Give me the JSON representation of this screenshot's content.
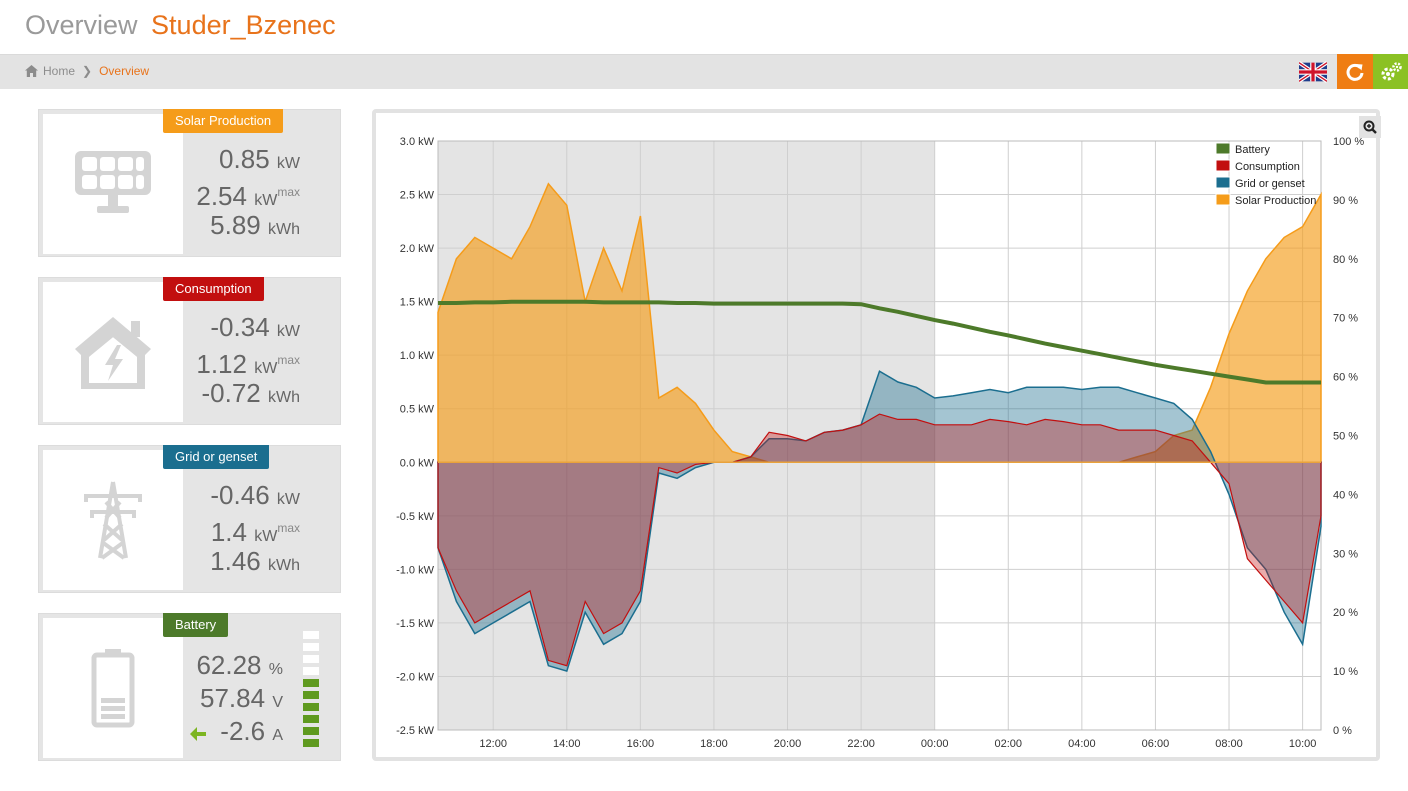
{
  "header": {
    "title": "Overview",
    "site": "Studer_Bzenec"
  },
  "breadcrumb": {
    "home": "Home",
    "current": "Overview"
  },
  "cards": {
    "solar": {
      "label": "Solar Production",
      "color": "#f59c1a",
      "power": "0.85",
      "power_unit": "kW",
      "max": "2.54",
      "max_unit": "kW",
      "max_sup": "max",
      "energy": "5.89",
      "energy_unit": "kWh"
    },
    "consumption": {
      "label": "Consumption",
      "color": "#c20f0f",
      "power": "-0.34",
      "power_unit": "kW",
      "max": "1.12",
      "max_unit": "kW",
      "max_sup": "max",
      "energy": "-0.72",
      "energy_unit": "kWh"
    },
    "grid": {
      "label": "Grid or genset",
      "color": "#1b6e8f",
      "power": "-0.46",
      "power_unit": "kW",
      "max": "1.4",
      "max_unit": "kW",
      "max_sup": "max",
      "energy": "1.46",
      "energy_unit": "kWh"
    },
    "battery": {
      "label": "Battery",
      "color": "#4d7a2a",
      "soc": "62.28",
      "soc_unit": "%",
      "voltage": "57.84",
      "voltage_unit": "V",
      "current": "-2.6",
      "current_unit": "A",
      "level_bars_filled": 6,
      "level_bars_total": 10
    }
  },
  "chart_data": {
    "type": "area",
    "x": [
      "10:30",
      "11:00",
      "11:30",
      "12:00",
      "12:30",
      "13:00",
      "13:30",
      "14:00",
      "14:30",
      "15:00",
      "15:30",
      "16:00",
      "16:30",
      "17:00",
      "17:30",
      "18:00",
      "18:30",
      "19:00",
      "19:30",
      "20:00",
      "20:30",
      "21:00",
      "21:30",
      "22:00",
      "22:30",
      "23:00",
      "23:30",
      "00:00",
      "00:30",
      "01:00",
      "01:30",
      "02:00",
      "02:30",
      "03:00",
      "03:30",
      "04:00",
      "04:30",
      "05:00",
      "05:30",
      "06:00",
      "06:30",
      "07:00",
      "07:30",
      "08:00",
      "08:30",
      "09:00",
      "09:30",
      "10:00",
      "10:30"
    ],
    "x_ticks": [
      "12:00",
      "14:00",
      "16:00",
      "18:00",
      "20:00",
      "22:00",
      "00:00",
      "02:00",
      "04:00",
      "06:00",
      "08:00",
      "10:00"
    ],
    "y_ticks": [
      "3.0 kW",
      "2.5 kW",
      "2.0 kW",
      "1.5 kW",
      "1.0 kW",
      "0.5 kW",
      "0.0 kW",
      "-0.5 kW",
      "-1.0 kW",
      "-1.5 kW",
      "-2.0 kW",
      "-2.5 kW"
    ],
    "y2_ticks": [
      "100 %",
      "90 %",
      "80 %",
      "70 %",
      "60 %",
      "50 %",
      "40 %",
      "30 %",
      "20 %",
      "10 %",
      "0 %"
    ],
    "ylim": [
      -2.5,
      3.0
    ],
    "y2lim": [
      0,
      100
    ],
    "legend_position": "top-right",
    "grid": true,
    "series": [
      {
        "name": "Battery",
        "axis": "right",
        "color": "#4d7a2a",
        "values": [
          72.5,
          72.5,
          72.6,
          72.6,
          72.7,
          72.7,
          72.7,
          72.7,
          72.7,
          72.6,
          72.6,
          72.6,
          72.6,
          72.5,
          72.5,
          72.4,
          72.4,
          72.4,
          72.4,
          72.4,
          72.4,
          72.4,
          72.4,
          72.3,
          71.6,
          71,
          70.3,
          69.6,
          69,
          68.3,
          67.6,
          67,
          66.3,
          65.6,
          65,
          64.4,
          63.8,
          63.2,
          62.6,
          62,
          61.5,
          61,
          60.5,
          60,
          59.5,
          59,
          59,
          59,
          59
        ]
      },
      {
        "name": "Consumption",
        "axis": "left",
        "color": "#c20f0f",
        "values": [
          -0.8,
          -1.2,
          -1.5,
          -1.4,
          -1.3,
          -1.2,
          -1.85,
          -1.9,
          -1.3,
          -1.6,
          -1.5,
          -1.2,
          -0.05,
          -0.1,
          -0.02,
          0.0,
          0.0,
          0.05,
          0.28,
          0.25,
          0.2,
          0.28,
          0.3,
          0.35,
          0.45,
          0.4,
          0.4,
          0.35,
          0.35,
          0.35,
          0.4,
          0.38,
          0.35,
          0.4,
          0.38,
          0.35,
          0.35,
          0.3,
          0.3,
          0.3,
          0.25,
          0.2,
          0.0,
          -0.2,
          -0.9,
          -1.1,
          -1.3,
          -1.5,
          -0.5
        ]
      },
      {
        "name": "Grid or genset",
        "axis": "left",
        "color": "#1b6e8f",
        "values": [
          -0.8,
          -1.3,
          -1.6,
          -1.5,
          -1.4,
          -1.3,
          -1.9,
          -1.95,
          -1.4,
          -1.7,
          -1.6,
          -1.3,
          -0.1,
          -0.15,
          -0.05,
          0.0,
          0.0,
          0.05,
          0.22,
          0.22,
          0.2,
          0.28,
          0.3,
          0.35,
          0.85,
          0.75,
          0.7,
          0.6,
          0.62,
          0.65,
          0.68,
          0.65,
          0.7,
          0.7,
          0.7,
          0.68,
          0.7,
          0.7,
          0.65,
          0.6,
          0.55,
          0.4,
          0.1,
          -0.3,
          -0.8,
          -1.0,
          -1.4,
          -1.7,
          -0.6
        ]
      },
      {
        "name": "Solar Production",
        "axis": "left",
        "color": "#f59c1a",
        "values": [
          1.4,
          1.9,
          2.1,
          2.0,
          1.9,
          2.2,
          2.6,
          2.4,
          1.5,
          2.0,
          1.6,
          2.3,
          0.6,
          0.7,
          0.55,
          0.3,
          0.1,
          0.05,
          0.0,
          0.0,
          0.0,
          0.0,
          0.0,
          0.0,
          0.0,
          0.0,
          0.0,
          0.0,
          0.0,
          0.0,
          0.0,
          0.0,
          0.0,
          0.0,
          0.0,
          0.0,
          0.0,
          0.0,
          0.05,
          0.1,
          0.25,
          0.3,
          0.7,
          1.2,
          1.6,
          1.9,
          2.1,
          2.2,
          2.5
        ]
      }
    ]
  }
}
